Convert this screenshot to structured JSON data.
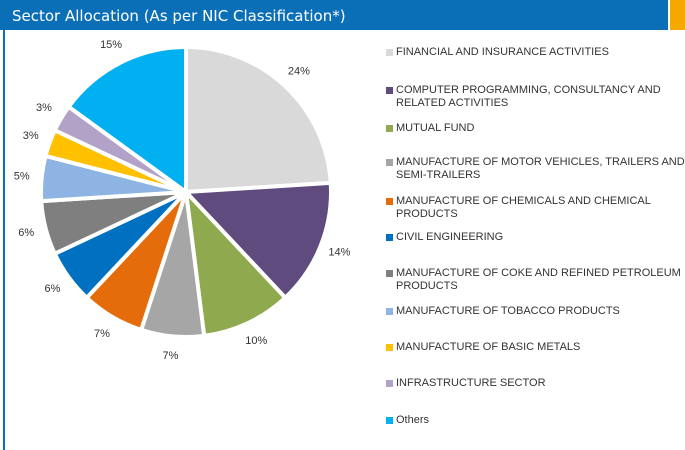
{
  "chart_data": {
    "type": "pie",
    "title": "Sector Allocation (As per NIC Classification*)",
    "categories": [
      "FINANCIAL AND INSURANCE ACTIVITIES",
      "COMPUTER PROGRAMMING, CONSULTANCY AND RELATED ACTIVITIES",
      "MUTUAL FUND",
      "MANUFACTURE OF MOTOR VEHICLES, TRAILERS AND SEMI-TRAILERS",
      "MANUFACTURE OF CHEMICALS AND CHEMICAL PRODUCTS",
      "CIVIL ENGINEERING",
      "MANUFACTURE OF COKE AND REFINED PETROLEUM PRODUCTS",
      "MANUFACTURE OF TOBACCO PRODUCTS",
      "MANUFACTURE OF BASIC METALS",
      "INFRASTRUCTURE SECTOR",
      "Others"
    ],
    "values": [
      24,
      14,
      10,
      7,
      7,
      6,
      6,
      5,
      3,
      3,
      15
    ],
    "value_labels": [
      "24%",
      "14%",
      "10%",
      "7%",
      "7%",
      "6%",
      "6%",
      "5%",
      "3%",
      "3%",
      "15%"
    ],
    "colors": [
      "#d9d9d9",
      "#5f4b7d",
      "#8ea94e",
      "#a6a6a6",
      "#e46c0a",
      "#0070c0",
      "#7f7f7f",
      "#8db4e2",
      "#ffc000",
      "#b3a2c7",
      "#00b0f0"
    ]
  }
}
